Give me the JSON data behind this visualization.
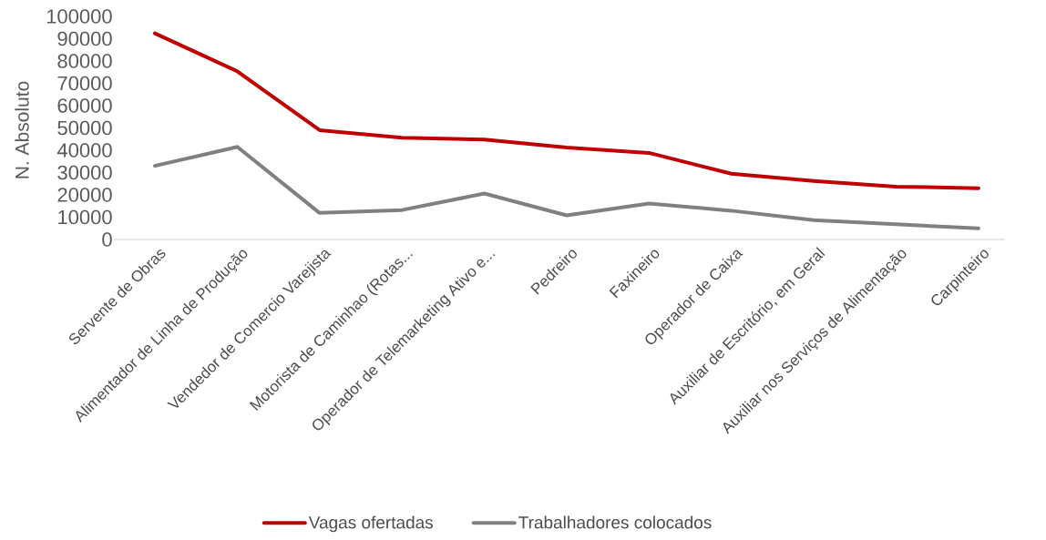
{
  "chart_data": {
    "type": "line",
    "ylabel": "N. Absoluto",
    "categories": [
      "Servente de Obras",
      "Alimentador de Linha de Produção",
      "Vendedor de Comercio Varejista",
      "Motorista de Caminhao (Rotas...",
      "Operador de Telemarketing Ativo e...",
      "Pedreiro",
      "Faxineiro",
      "Operador de Caixa",
      "Auxiliar de Escritório, em Geral",
      "Auxiliar nos Serviços de Alimentação",
      "Carpinteiro"
    ],
    "series": [
      {
        "name": "Vagas ofertadas",
        "color": "#c00000",
        "values": [
          92400,
          75400,
          49000,
          45600,
          44800,
          41200,
          38800,
          29500,
          26200,
          23700,
          23000
        ]
      },
      {
        "name": "Trabalhadores colocados",
        "color": "#808080",
        "values": [
          33000,
          41500,
          11900,
          13200,
          20600,
          10800,
          16100,
          12900,
          8700,
          6800,
          5000
        ]
      }
    ],
    "ylim": [
      0,
      100000
    ],
    "yticks": [
      0,
      10000,
      20000,
      30000,
      40000,
      50000,
      60000,
      70000,
      80000,
      90000,
      100000
    ],
    "legend": "bottom",
    "marker": "none",
    "line_style": "solid"
  }
}
